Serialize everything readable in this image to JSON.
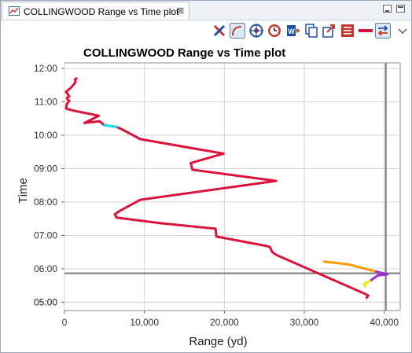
{
  "tab": {
    "title": "COLLINGWOOD Range vs Time plot",
    "close_glyph": "⊠"
  },
  "toolbar": {
    "icons": [
      "fit-to-window-icon",
      "curve-select-icon",
      "target-icon",
      "clock-icon",
      "export-word-icon",
      "copy-icon",
      "share-export-icon",
      "list-icon",
      "line-style-icon",
      "swap-axes-icon",
      "view-menu-chevron-icon"
    ]
  },
  "chart_data": {
    "type": "line",
    "title": "COLLINGWOOD Range vs Time plot",
    "xlabel": "Range (yd)",
    "ylabel": "Time",
    "xlim": [
      0,
      42000
    ],
    "ylim": [
      "05:00",
      "12:00"
    ],
    "x_ticks": [
      "0",
      "10,000",
      "20,000",
      "30,000",
      "40,000"
    ],
    "y_ticks": [
      "05:00",
      "05:00",
      "06:00",
      "07:00",
      "08:00",
      "09:00",
      "10:00",
      "11:00",
      "12:00"
    ],
    "grid": true,
    "crosshair": {
      "x": 40200,
      "y": "05:52"
    },
    "series": [
      {
        "color": "#dc143c",
        "points": [
          [
            37800,
            "05:08"
          ],
          [
            38000,
            "05:12"
          ],
          [
            37600,
            "05:15"
          ],
          [
            26500,
            "06:25"
          ],
          [
            26000,
            "06:30"
          ],
          [
            25700,
            "06:39"
          ],
          [
            25300,
            "06:41"
          ],
          [
            19000,
            "06:58"
          ],
          [
            18900,
            "07:12"
          ],
          [
            12000,
            "07:22"
          ],
          [
            6500,
            "07:32"
          ],
          [
            6300,
            "07:38"
          ],
          [
            6900,
            "07:44"
          ],
          [
            9500,
            "08:04"
          ],
          [
            26500,
            "08:38"
          ],
          [
            16000,
            "08:58"
          ],
          [
            15800,
            "09:10"
          ],
          [
            19900,
            "09:27"
          ],
          [
            9500,
            "09:53"
          ],
          [
            7000,
            "10:12"
          ],
          [
            6500,
            "10:15"
          ],
          [
            5000,
            "10:18"
          ],
          [
            4400,
            "10:25"
          ],
          [
            2500,
            "10:22"
          ],
          [
            3600,
            "10:30"
          ],
          [
            4300,
            "10:35"
          ],
          [
            1200,
            "10:44"
          ],
          [
            200,
            "10:48"
          ],
          [
            300,
            "10:56"
          ],
          [
            600,
            "11:02"
          ],
          [
            400,
            "11:04"
          ],
          [
            300,
            "11:07"
          ],
          [
            600,
            "11:10"
          ],
          [
            400,
            "11:14"
          ],
          [
            200,
            "11:18"
          ],
          [
            700,
            "11:24"
          ],
          [
            1100,
            "11:30"
          ],
          [
            1400,
            "11:36"
          ],
          [
            1300,
            "11:40"
          ],
          [
            1500,
            "11:42"
          ]
        ]
      },
      {
        "color": "#00e5ee",
        "points": [
          [
            5000,
            "10:18"
          ],
          [
            6500,
            "10:15"
          ]
        ]
      },
      {
        "color": "#ff9900",
        "points": [
          [
            32500,
            "06:13"
          ],
          [
            35500,
            "06:08"
          ],
          [
            39000,
            "05:55"
          ]
        ]
      },
      {
        "color": "#9b30d0",
        "points": [
          [
            39000,
            "05:55"
          ],
          [
            40400,
            "05:50"
          ],
          [
            39200,
            "05:48"
          ],
          [
            38200,
            "05:38"
          ]
        ]
      },
      {
        "color": "#f2e600",
        "points": [
          [
            38200,
            "05:38"
          ],
          [
            37500,
            "05:33"
          ],
          [
            37600,
            "05:28"
          ]
        ]
      }
    ]
  }
}
